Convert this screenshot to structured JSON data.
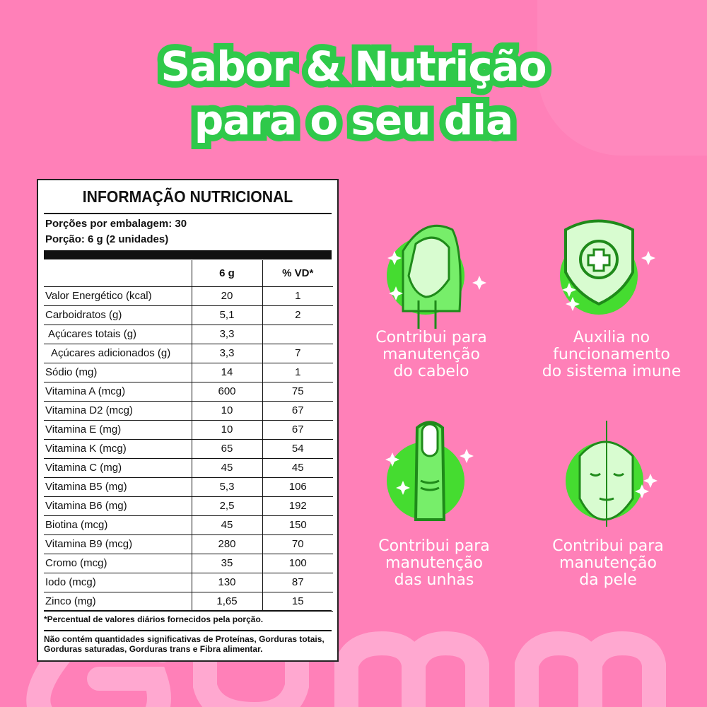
{
  "headline": {
    "line1": "Sabor & Nutrição",
    "line2": "para o seu dia"
  },
  "watermark": "Gummy",
  "label": {
    "title": "INFORMAÇÃO NUTRICIONAL",
    "servings_per_pack": "Porções por embalagem: 30",
    "serving_size": "Porção: 6 g (2 unidades)",
    "columns": [
      "",
      "6 g",
      "% VD*"
    ],
    "rows": [
      [
        "Valor Energético (kcal)",
        "20",
        "1"
      ],
      [
        "Carboidratos (g)",
        "5,1",
        "2"
      ],
      [
        " Açúcares totais (g)",
        "3,3",
        ""
      ],
      [
        "  Açúcares adicionados (g)",
        "3,3",
        "7"
      ],
      [
        "Sódio (mg)",
        "14",
        "1"
      ],
      [
        "Vitamina A (mcg)",
        "600",
        "75"
      ],
      [
        "Vitamina D2 (mcg)",
        "10",
        "67"
      ],
      [
        "Vitamina E (mg)",
        "10",
        "67"
      ],
      [
        "Vitamina K (mcg)",
        "65",
        "54"
      ],
      [
        "Vitamina C (mg)",
        "45",
        "45"
      ],
      [
        "Vitamina B5 (mg)",
        "5,3",
        "106"
      ],
      [
        "Vitamina B6 (mg)",
        "2,5",
        "192"
      ],
      [
        "Biotina (mcg)",
        "45",
        "150"
      ],
      [
        "Vitamina B9 (mcg)",
        "280",
        "70"
      ],
      [
        "Cromo (mcg)",
        "35",
        "100"
      ],
      [
        "Iodo (mcg)",
        "130",
        "87"
      ],
      [
        "Zinco (mg)",
        "1,65",
        "15"
      ]
    ],
    "footnote": "*Percentual de valores diários fornecidos pela porção.",
    "disclaimer": "Não contém quantidades significativas de Proteínas, Gorduras totais, Gorduras saturadas, Gorduras trans e Fibra alimentar."
  },
  "benefits": [
    {
      "icon": "hair-woman-icon",
      "text": [
        "Contribui para",
        "manutenção",
        "do cabelo"
      ]
    },
    {
      "icon": "shield-plus-icon",
      "text": [
        "Auxilia no",
        "funcionamento",
        "do sistema imune"
      ]
    },
    {
      "icon": "fingernail-icon",
      "text": [
        "Contribui para",
        "manutenção",
        "das unhas"
      ]
    },
    {
      "icon": "skin-face-icon",
      "text": [
        "Contribui para",
        "manutenção",
        "da pele"
      ]
    }
  ],
  "colors": {
    "background": "#ff80b8",
    "green": "#2fc94a",
    "icon_green": "#45dc30",
    "light_green": "#d8fcd0"
  }
}
